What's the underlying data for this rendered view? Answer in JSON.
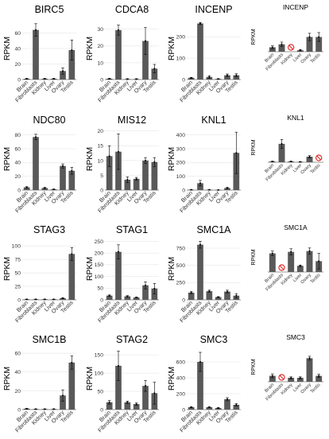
{
  "categories": [
    "Brain",
    "Fibroblasts",
    "Kidney",
    "Liver",
    "Ovary",
    "Testis"
  ],
  "ylabel": "RPKM",
  "colors": {
    "bar": "#595959",
    "missing_marker": "#e02020"
  },
  "chart_data": [
    {
      "type": "bar",
      "title": "BIRC5",
      "size": "large",
      "ylim": [
        0,
        80
      ],
      "yticks": [
        0,
        20,
        40,
        60
      ],
      "values": [
        1,
        64,
        1,
        1,
        11,
        38
      ],
      "errors": [
        0.5,
        8,
        0.5,
        0.5,
        4,
        13
      ],
      "missing": []
    },
    {
      "type": "bar",
      "title": "CDCA8",
      "size": "large",
      "ylim": [
        0,
        37
      ],
      "yticks": [
        0,
        10,
        20,
        30
      ],
      "values": [
        0.5,
        29.5,
        0.3,
        0.3,
        23,
        6.5
      ],
      "errors": [
        0.3,
        3,
        0.2,
        0.2,
        8,
        2.5
      ],
      "missing": []
    },
    {
      "type": "bar",
      "title": "INCENP",
      "size": "large",
      "ylim": [
        0,
        290
      ],
      "yticks": [
        0,
        100,
        200
      ],
      "values": [
        8,
        262,
        12,
        3,
        20,
        20
      ],
      "errors": [
        2,
        5,
        6,
        1,
        6,
        7
      ],
      "missing": []
    },
    {
      "type": "bar",
      "title": "INCENP",
      "size": "small",
      "ylim": [
        0,
        40
      ],
      "yticks": [],
      "values": [
        6,
        10,
        6,
        2,
        20,
        20
      ],
      "errors": [
        2,
        3,
        2,
        1,
        5,
        6
      ],
      "missing": [
        2
      ]
    },
    {
      "type": "bar",
      "title": "NDC80",
      "size": "large",
      "ylim": [
        0,
        90
      ],
      "yticks": [
        0,
        20,
        40,
        60,
        80
      ],
      "values": [
        4,
        77,
        3,
        1,
        35,
        28
      ],
      "errors": [
        1,
        4,
        1,
        0.5,
        3,
        5
      ],
      "missing": []
    },
    {
      "type": "bar",
      "title": "MIS12",
      "size": "large",
      "ylim": [
        0,
        21
      ],
      "yticks": [
        0,
        5,
        10,
        15,
        20
      ],
      "values": [
        11.5,
        13,
        3.5,
        3.8,
        10,
        9.5
      ],
      "errors": [
        3.5,
        6,
        1,
        0.5,
        1,
        1.5
      ],
      "missing": []
    },
    {
      "type": "bar",
      "title": "KNL1",
      "size": "large",
      "ylim": [
        0,
        450
      ],
      "yticks": [
        0,
        100,
        200,
        300,
        400
      ],
      "values": [
        2,
        50,
        2,
        1,
        15,
        270
      ],
      "errors": [
        1,
        20,
        1,
        0.5,
        5,
        150
      ],
      "missing": []
    },
    {
      "type": "bar",
      "title": "KNL1",
      "size": "small",
      "ylim": [
        0,
        80
      ],
      "yticks": [],
      "values": [
        2,
        50,
        2,
        1,
        15,
        10
      ],
      "errors": [
        1,
        12,
        1,
        0.5,
        3,
        0
      ],
      "missing": [
        5
      ]
    },
    {
      "type": "bar",
      "title": "STAG3",
      "size": "large",
      "ylim": [
        0,
        115
      ],
      "yticks": [
        0,
        25,
        50,
        75,
        100
      ],
      "values": [
        1,
        1,
        1,
        1,
        3,
        85
      ],
      "errors": [
        0.3,
        0.3,
        0.3,
        0.3,
        1,
        12
      ],
      "missing": []
    },
    {
      "type": "bar",
      "title": "STAG1",
      "size": "large",
      "ylim": [
        0,
        265
      ],
      "yticks": [
        0,
        50,
        100,
        150,
        200,
        250
      ],
      "values": [
        18,
        205,
        15,
        10,
        62,
        48
      ],
      "errors": [
        3,
        30,
        3,
        2,
        15,
        22
      ],
      "missing": []
    },
    {
      "type": "bar",
      "title": "SMC1A",
      "size": "large",
      "ylim": [
        0,
        900
      ],
      "yticks": [
        0,
        250,
        500,
        750
      ],
      "values": [
        105,
        800,
        125,
        40,
        120,
        60
      ],
      "errors": [
        15,
        50,
        15,
        5,
        20,
        30
      ],
      "missing": []
    },
    {
      "type": "bar",
      "title": "SMC1A",
      "size": "small",
      "ylim": [
        0,
        190
      ],
      "yticks": [],
      "values": [
        120,
        10,
        130,
        40,
        135,
        70
      ],
      "errors": [
        15,
        0,
        20,
        5,
        20,
        50
      ],
      "missing": [
        1
      ]
    },
    {
      "type": "bar",
      "title": "SMC1B",
      "size": "large",
      "ylim": [
        0,
        66
      ],
      "yticks": [
        0,
        20,
        40,
        60
      ],
      "values": [
        1,
        0.5,
        0.5,
        0.5,
        15,
        50
      ],
      "errors": [
        0.3,
        0.2,
        0.2,
        0.2,
        6,
        7
      ],
      "missing": []
    },
    {
      "type": "bar",
      "title": "STAG2",
      "size": "large",
      "ylim": [
        0,
        170
      ],
      "yticks": [
        0,
        50,
        100,
        150
      ],
      "values": [
        20,
        120,
        20,
        15,
        65,
        45
      ],
      "errors": [
        5,
        40,
        3,
        3,
        15,
        30
      ],
      "missing": []
    },
    {
      "type": "bar",
      "title": "SMC3",
      "size": "large",
      "ylim": [
        0,
        780
      ],
      "yticks": [
        0,
        200,
        400,
        600
      ],
      "values": [
        30,
        600,
        30,
        20,
        130,
        60
      ],
      "errors": [
        5,
        120,
        5,
        5,
        20,
        15
      ],
      "missing": []
    },
    {
      "type": "bar",
      "title": "SMC3",
      "size": "small",
      "ylim": [
        0,
        150
      ],
      "yticks": [],
      "values": [
        30,
        10,
        20,
        20,
        120,
        30
      ],
      "errors": [
        10,
        0,
        5,
        5,
        10,
        8
      ],
      "missing": [
        1
      ]
    }
  ]
}
